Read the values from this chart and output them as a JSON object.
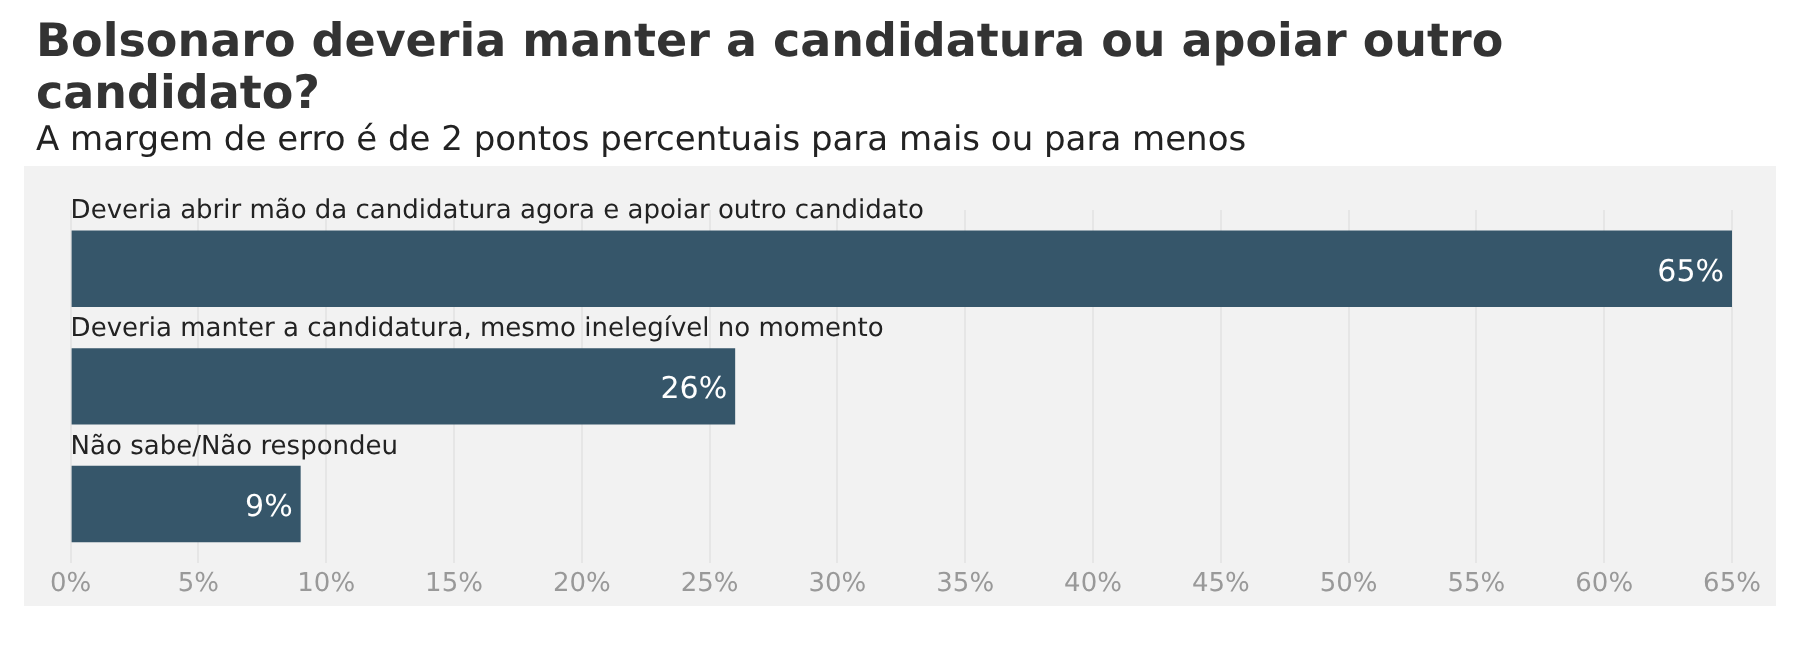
{
  "chart_data": {
    "type": "bar",
    "orientation": "horizontal",
    "title": "Bolsonaro deveria manter a candidatura ou apoiar outro candidato?",
    "subtitle": "A margem de erro é de 2 pontos percentuais para mais ou para menos",
    "categories": [
      "Deveria abrir mão da candidatura agora e apoiar outro candidato",
      "Deveria manter a candidatura, mesmo inelegível no momento",
      "Não sabe/Não respondeu"
    ],
    "values": [
      65,
      26,
      9
    ],
    "value_labels": [
      "65%",
      "26%",
      "9%"
    ],
    "color": "#36566a",
    "grid": "x",
    "legend": false,
    "xlim": [
      0,
      65
    ],
    "xticks": [
      {
        "value": 0,
        "label": "0%"
      },
      {
        "value": 5,
        "label": "5%"
      },
      {
        "value": 10,
        "label": "10%"
      },
      {
        "value": 15,
        "label": "15%"
      },
      {
        "value": 20,
        "label": "20%"
      },
      {
        "value": 25,
        "label": "25%"
      },
      {
        "value": 30,
        "label": "30%"
      },
      {
        "value": 35,
        "label": "35%"
      },
      {
        "value": 40,
        "label": "40%"
      },
      {
        "value": 45,
        "label": "45%"
      },
      {
        "value": 50,
        "label": "50%"
      },
      {
        "value": 55,
        "label": "55%"
      },
      {
        "value": 60,
        "label": "60%"
      },
      {
        "value": 65,
        "label": "65%"
      }
    ]
  }
}
